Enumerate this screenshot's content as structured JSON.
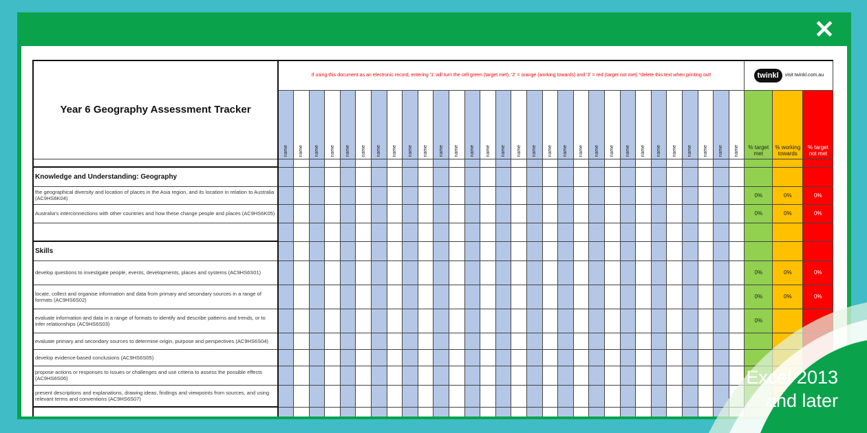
{
  "title": "Year 6 Geography Assessment Tracker",
  "message": "If using this document as an electronic record, entering '1' will turn the cell green (target met), '2' = orange (working towards) and '3' = red (target not met) *delete this text when printing out!",
  "logo": {
    "brand": "twinkl",
    "link": "visit twinkl.com.au"
  },
  "name_label": "name",
  "name_count": 30,
  "pct_headers": [
    "% target met",
    "% working towards",
    "% target not met"
  ],
  "sections": [
    {
      "heading": "Knowledge and Understanding: Geography",
      "rows": [
        {
          "text": "the geographical diversity and location of places in the Asia region, and its location in relation to Australia (AC9HS6K04)",
          "pct": [
            "0%",
            "0%",
            "0%"
          ]
        },
        {
          "text": "Australia's interconnections with other countries and how these change people and places (AC9HS6K05)",
          "pct": [
            "0%",
            "0%",
            "0%"
          ]
        }
      ]
    },
    {
      "heading": "Skills",
      "rows": [
        {
          "text": "develop questions to investigate people, events, developments, places and systems (AC9HS6S01)",
          "pct": [
            "0%",
            "0%",
            "0%"
          ]
        },
        {
          "text": "locate, collect and organise information and data from primary and secondary sources in a range of formats (AC9HS6S02)",
          "pct": [
            "0%",
            "0%",
            "0%"
          ]
        },
        {
          "text": "evaluate information and data in a range of formats to identify and describe patterns and trends, or to infer relationships (AC9HS6S03)",
          "pct": [
            "0%",
            "",
            ""
          ]
        },
        {
          "text": "evaluate primary and secondary sources to determine origin, purpose and perspectives (AC9HS6S04)",
          "pct": [
            "",
            "",
            ""
          ]
        },
        {
          "text": "develop evidence-based conclusions (AC9HS6S05)",
          "pct": [
            "",
            "",
            ""
          ]
        },
        {
          "text": "propose actions or responses to issues or challenges and use criteria to assess the possible effects (AC9HS6S06)",
          "pct": [
            "",
            "",
            ""
          ]
        },
        {
          "text": "present descriptions and explanations, drawing ideas, findings and viewpoints from sources, and using relevant terms and conventions (AC9HS6S07)",
          "pct": [
            "",
            "",
            ""
          ]
        }
      ]
    }
  ],
  "badge": {
    "line1": "Excel 2013",
    "line2": "and later"
  },
  "colors": {
    "frame": "#0aa34c",
    "background": "#40bcc6",
    "met": "#92d050",
    "towards": "#ffc000",
    "not_met": "#ff0000",
    "name_col": "#b4c7e7"
  }
}
